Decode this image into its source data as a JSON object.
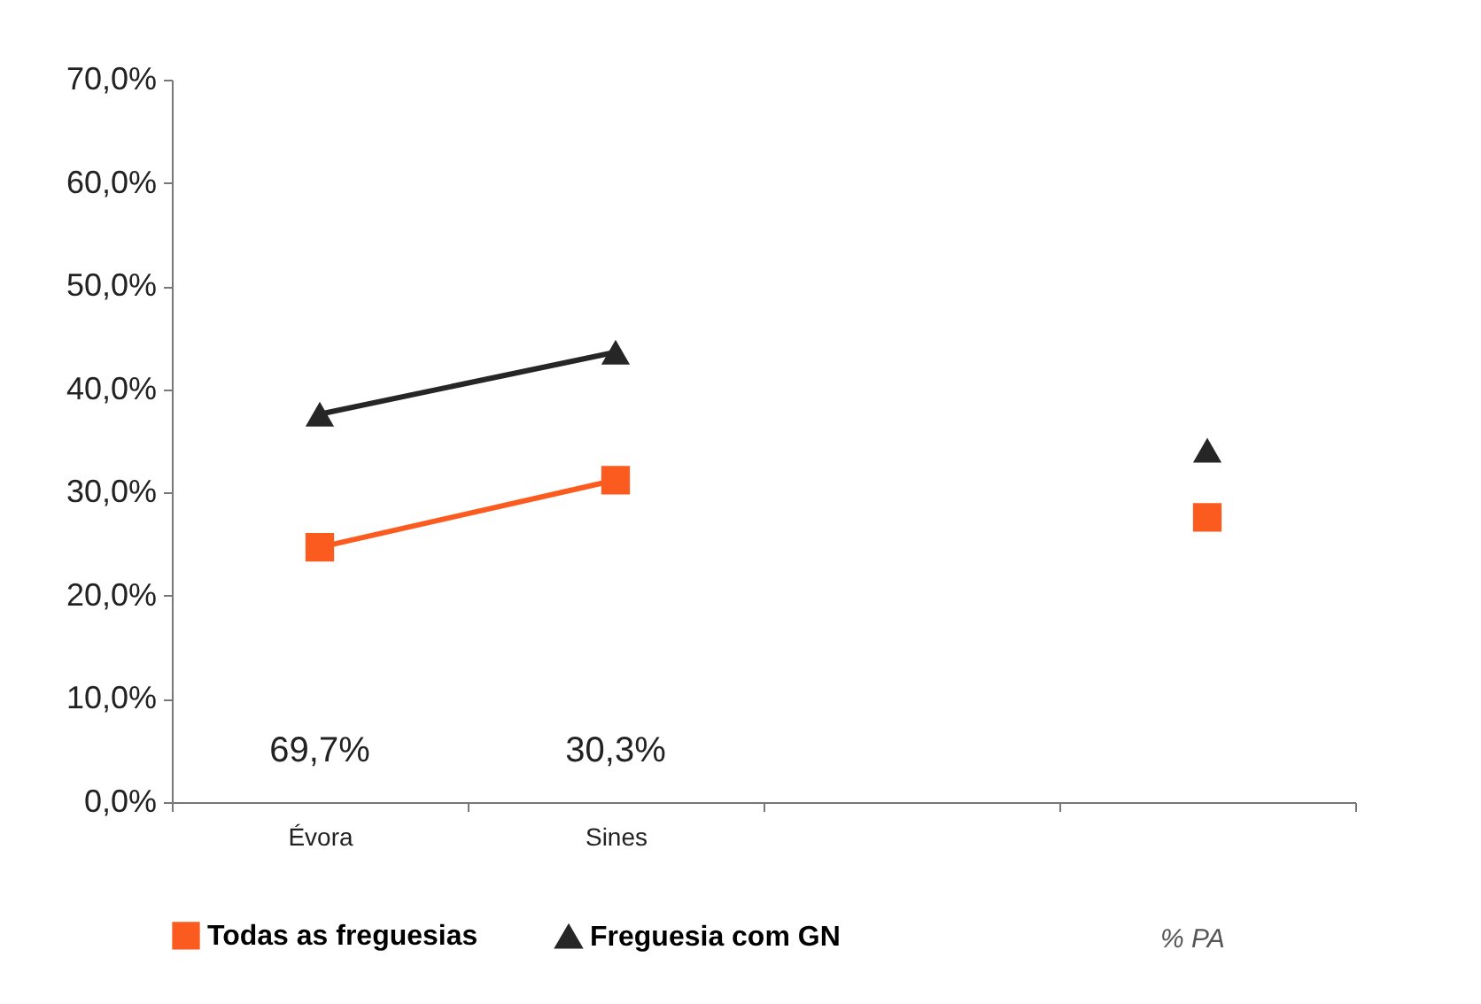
{
  "chart_data": {
    "type": "line",
    "categories": [
      "Évora",
      "Sines",
      null,
      null
    ],
    "series": [
      {
        "name": "Todas as freguesias",
        "color": "#fc5b1f",
        "values": [
          24.7,
          31.2,
          null,
          27.6
        ],
        "marker": "square"
      },
      {
        "name": "Freguesia com GN",
        "color": "#262626",
        "values": [
          37.6,
          43.6,
          null,
          34.1
        ],
        "marker": "triangle"
      }
    ],
    "ylim": [
      0,
      70
    ],
    "yticks": [
      {
        "value": 0,
        "label": "0,0%"
      },
      {
        "value": 10,
        "label": "10,0%"
      },
      {
        "value": 20,
        "label": "20,0%"
      },
      {
        "value": 30,
        "label": "30,0%"
      },
      {
        "value": 40,
        "label": "40,0%"
      },
      {
        "value": 50,
        "label": "50,0%"
      },
      {
        "value": 60,
        "label": "60,0%"
      },
      {
        "value": 70,
        "label": "70,0%"
      }
    ],
    "annotations": [
      "69,7%",
      "30,3%",
      "% PA"
    ],
    "legend": "bottom",
    "grid": false
  }
}
